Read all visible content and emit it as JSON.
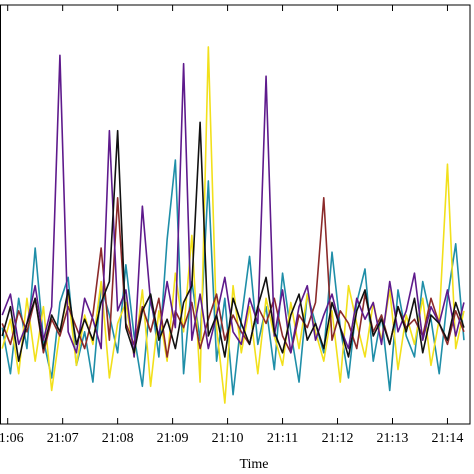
{
  "chart_data": {
    "type": "line",
    "xlabel": "Time",
    "x": [
      1265.9,
      1266.05,
      1266.2,
      1266.35,
      1266.5,
      1266.65,
      1266.8,
      1266.95,
      1267.1,
      1267.25,
      1267.4,
      1267.55,
      1267.7,
      1267.85,
      1268,
      1268.15,
      1268.3,
      1268.45,
      1268.6,
      1268.75,
      1268.9,
      1269.05,
      1269.2,
      1269.35,
      1269.5,
      1269.65,
      1269.8,
      1269.95,
      1270.1,
      1270.25,
      1270.4,
      1270.55,
      1270.7,
      1270.85,
      1271,
      1271.15,
      1271.3,
      1271.45,
      1271.6,
      1271.75,
      1271.9,
      1272.05,
      1272.2,
      1272.35,
      1272.5,
      1272.65,
      1272.8,
      1272.95,
      1273.1,
      1273.25,
      1273.4,
      1273.55,
      1273.7,
      1273.85,
      1274,
      1274.15,
      1274.3
    ],
    "xlim": [
      1265.86,
      1274.41
    ],
    "xticks": [
      {
        "value": 1266,
        "label": "21:06"
      },
      {
        "value": 1267,
        "label": "21:07"
      },
      {
        "value": 1268,
        "label": "21:08"
      },
      {
        "value": 1269,
        "label": "21:09"
      },
      {
        "value": 1270,
        "label": "21:10"
      },
      {
        "value": 1271,
        "label": "21:11"
      },
      {
        "value": 1272,
        "label": "21:12"
      },
      {
        "value": 1273,
        "label": "21:13"
      },
      {
        "value": 1274,
        "label": "21:14"
      }
    ],
    "ylim": [
      0,
      10
    ],
    "series": [
      {
        "color": "#1f8ea8",
        "values": [
          2.3,
          1.2,
          3.0,
          1.8,
          4.2,
          2.0,
          1.1,
          2.9,
          3.5,
          1.4,
          2.2,
          1.0,
          3.3,
          2.6,
          1.7,
          3.8,
          2.1,
          0.9,
          3.1,
          1.6,
          4.4,
          6.3,
          1.2,
          3.4,
          2.0,
          5.8,
          1.5,
          3.0,
          0.7,
          2.5,
          4.0,
          1.9,
          2.8,
          1.3,
          3.6,
          2.2,
          1.0,
          3.1,
          2.4,
          1.7,
          4.1,
          2.3,
          1.1,
          2.9,
          3.7,
          1.5,
          2.6,
          0.8,
          3.2,
          2.1,
          1.6,
          3.4,
          2.5,
          1.2,
          3.0,
          4.3,
          2.0
        ]
      },
      {
        "color": "#f2e01b",
        "values": [
          1.8,
          2.5,
          1.2,
          3.0,
          1.5,
          2.8,
          0.8,
          2.2,
          3.1,
          1.4,
          2.6,
          1.9,
          3.4,
          1.1,
          2.4,
          2.9,
          1.6,
          3.2,
          0.9,
          2.7,
          1.5,
          3.6,
          2.2,
          4.5,
          1.0,
          9.0,
          2.3,
          0.5,
          3.3,
          1.7,
          2.8,
          1.2,
          3.0,
          2.1,
          1.4,
          2.9,
          1.8,
          3.1,
          2.2,
          1.5,
          2.7,
          1.0,
          3.3,
          2.4,
          1.6,
          2.9,
          2.0,
          3.2,
          1.3,
          2.6,
          1.9,
          3.0,
          1.4,
          2.5,
          6.2,
          1.8,
          2.7
        ]
      },
      {
        "color": "#8b2a2a",
        "values": [
          2.4,
          1.9,
          2.7,
          2.2,
          3.0,
          1.7,
          2.5,
          2.1,
          2.8,
          2.3,
          1.8,
          2.6,
          4.2,
          2.0,
          5.4,
          2.4,
          1.9,
          2.8,
          2.2,
          3.0,
          1.6,
          2.7,
          2.3,
          2.9,
          1.8,
          2.5,
          3.1,
          2.0,
          2.6,
          2.2,
          1.9,
          2.8,
          2.4,
          3.0,
          2.1,
          1.7,
          2.6,
          2.3,
          2.9,
          5.4,
          2.0,
          2.7,
          2.4,
          1.8,
          3.1,
          2.2,
          2.6,
          1.9,
          2.8,
          2.3,
          2.5,
          2.1,
          3.0,
          2.4,
          1.9,
          2.7,
          2.2
        ]
      },
      {
        "color": "#5e1a8c",
        "values": [
          2.6,
          3.1,
          1.9,
          2.4,
          3.3,
          2.0,
          2.8,
          8.8,
          2.2,
          1.7,
          3.0,
          2.5,
          1.8,
          7.0,
          2.7,
          3.2,
          1.6,
          5.2,
          2.9,
          2.1,
          3.4,
          2.3,
          8.6,
          2.0,
          3.1,
          1.8,
          2.6,
          3.5,
          2.2,
          1.9,
          3.0,
          2.4,
          8.3,
          2.1,
          3.2,
          1.7,
          2.8,
          3.3,
          2.0,
          2.6,
          3.1,
          2.3,
          1.8,
          3.0,
          2.5,
          2.9,
          1.9,
          3.4,
          2.2,
          2.7,
          3.6,
          2.0,
          2.8,
          2.4,
          3.2,
          2.1,
          2.9
        ]
      },
      {
        "color": "#111111",
        "values": [
          2.1,
          2.8,
          1.5,
          2.4,
          3.0,
          1.8,
          2.6,
          2.2,
          3.2,
          1.9,
          2.5,
          2.0,
          2.9,
          3.4,
          7.0,
          2.3,
          1.7,
          2.7,
          3.1,
          2.0,
          2.5,
          1.8,
          2.9,
          3.3,
          7.2,
          2.1,
          2.6,
          1.6,
          3.0,
          2.4,
          1.9,
          2.8,
          3.5,
          2.2,
          1.7,
          2.6,
          3.1,
          2.0,
          2.4,
          1.8,
          2.9,
          2.3,
          1.6,
          2.7,
          3.2,
          2.1,
          2.5,
          1.9,
          2.8,
          2.2,
          3.0,
          1.7,
          2.6,
          2.4,
          2.0,
          2.9,
          2.3
        ]
      }
    ]
  }
}
